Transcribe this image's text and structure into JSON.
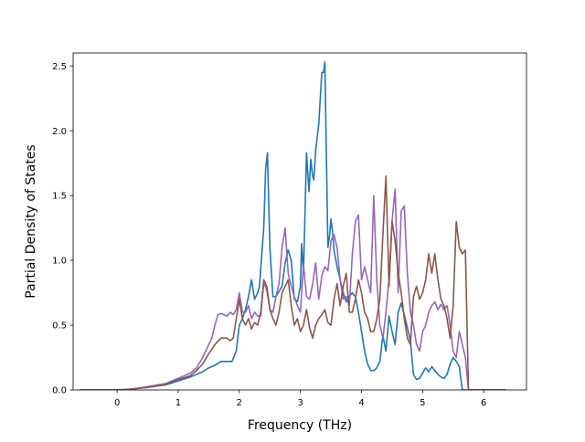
{
  "chart_data": {
    "type": "line",
    "title": "",
    "xlabel": "Frequency (THz)",
    "ylabel": "Partial Density of States",
    "xlim": [
      -0.72,
      6.7
    ],
    "ylim": [
      0.0,
      2.6
    ],
    "xticks": [
      "0",
      "1",
      "2",
      "3",
      "4",
      "5",
      "6"
    ],
    "xtick_values": [
      0,
      1,
      2,
      3,
      4,
      5,
      6
    ],
    "yticks": [
      "0.0",
      "0.5",
      "1.0",
      "1.5",
      "2.0",
      "2.5"
    ],
    "ytick_values": [
      0.0,
      0.5,
      1.0,
      1.5,
      2.0,
      2.5
    ],
    "grid": false,
    "legend": false,
    "series": [
      {
        "color": "#1f77b4",
        "x": [
          -0.6,
          0.0,
          0.2,
          0.5,
          0.8,
          1.0,
          1.2,
          1.4,
          1.5,
          1.6,
          1.7,
          1.8,
          1.88,
          1.95,
          2.0,
          2.05,
          2.1,
          2.15,
          2.2,
          2.25,
          2.3,
          2.33,
          2.36,
          2.4,
          2.43,
          2.46,
          2.5,
          2.55,
          2.6,
          2.7,
          2.75,
          2.8,
          2.85,
          2.9,
          2.95,
          3.0,
          3.02,
          3.05,
          3.1,
          3.14,
          3.17,
          3.2,
          3.22,
          3.25,
          3.3,
          3.35,
          3.38,
          3.4,
          3.45,
          3.48,
          3.5,
          3.53,
          3.55,
          3.6,
          3.65,
          3.7,
          3.75,
          3.8,
          3.85,
          3.9,
          3.95,
          4.0,
          4.05,
          4.1,
          4.15,
          4.2,
          4.25,
          4.3,
          4.35,
          4.4,
          4.45,
          4.5,
          4.55,
          4.6,
          4.65,
          4.7,
          4.75,
          4.8,
          4.85,
          4.9,
          4.95,
          5.0,
          5.05,
          5.1,
          5.15,
          5.2,
          5.25,
          5.3,
          5.35,
          5.4,
          5.45,
          5.5,
          5.55,
          5.6,
          5.65,
          5.7,
          5.75,
          5.8,
          6.35
        ],
        "y": [
          0.0,
          0.0,
          0.005,
          0.02,
          0.04,
          0.07,
          0.1,
          0.14,
          0.17,
          0.19,
          0.22,
          0.22,
          0.22,
          0.3,
          0.5,
          0.55,
          0.62,
          0.72,
          0.85,
          0.7,
          0.75,
          0.8,
          1.0,
          1.25,
          1.7,
          1.83,
          1.1,
          0.72,
          0.72,
          0.8,
          0.98,
          1.08,
          1.0,
          0.7,
          0.68,
          0.8,
          1.13,
          0.9,
          1.83,
          1.53,
          1.78,
          1.65,
          1.62,
          1.85,
          2.05,
          2.45,
          2.45,
          2.53,
          1.1,
          1.2,
          1.32,
          1.2,
          1.08,
          0.95,
          0.85,
          0.75,
          0.68,
          0.72,
          0.75,
          0.72,
          0.6,
          0.45,
          0.3,
          0.2,
          0.15,
          0.15,
          0.17,
          0.22,
          0.42,
          0.3,
          0.57,
          0.45,
          0.35,
          0.6,
          0.67,
          0.58,
          0.48,
          0.38,
          0.12,
          0.08,
          0.09,
          0.13,
          0.17,
          0.14,
          0.18,
          0.15,
          0.12,
          0.1,
          0.09,
          0.12,
          0.2,
          0.25,
          0.22,
          0.18,
          0.0,
          0.0,
          0.0,
          0.0,
          0.0
        ]
      },
      {
        "color": "#9467bd",
        "x": [
          -0.6,
          0.0,
          0.2,
          0.5,
          0.8,
          1.0,
          1.2,
          1.3,
          1.4,
          1.5,
          1.55,
          1.6,
          1.65,
          1.7,
          1.8,
          1.85,
          1.9,
          1.95,
          2.0,
          2.05,
          2.1,
          2.15,
          2.2,
          2.25,
          2.3,
          2.35,
          2.4,
          2.45,
          2.5,
          2.55,
          2.6,
          2.65,
          2.7,
          2.75,
          2.8,
          2.85,
          2.9,
          2.95,
          3.0,
          3.05,
          3.1,
          3.15,
          3.2,
          3.25,
          3.3,
          3.35,
          3.4,
          3.45,
          3.5,
          3.55,
          3.6,
          3.65,
          3.7,
          3.75,
          3.8,
          3.85,
          3.9,
          3.95,
          4.0,
          4.05,
          4.1,
          4.15,
          4.2,
          4.25,
          4.3,
          4.35,
          4.4,
          4.45,
          4.5,
          4.55,
          4.6,
          4.65,
          4.7,
          4.75,
          4.8,
          4.85,
          4.9,
          4.95,
          5.0,
          5.05,
          5.1,
          5.15,
          5.2,
          5.25,
          5.3,
          5.35,
          5.4,
          5.45,
          5.5,
          5.55,
          5.6,
          5.65,
          5.7,
          5.75,
          5.8,
          6.35
        ],
        "y": [
          0.0,
          0.0,
          0.005,
          0.025,
          0.05,
          0.09,
          0.13,
          0.17,
          0.25,
          0.35,
          0.4,
          0.5,
          0.58,
          0.59,
          0.57,
          0.6,
          0.58,
          0.62,
          0.75,
          0.6,
          0.6,
          0.65,
          0.55,
          0.6,
          0.57,
          0.57,
          0.83,
          0.77,
          0.62,
          0.6,
          0.72,
          0.82,
          1.1,
          1.25,
          0.9,
          0.8,
          0.72,
          0.65,
          0.6,
          0.97,
          0.72,
          0.7,
          0.82,
          0.98,
          0.7,
          0.88,
          0.95,
          0.92,
          1.15,
          1.2,
          1.1,
          0.85,
          0.7,
          0.72,
          0.65,
          1.05,
          1.3,
          1.35,
          0.85,
          0.95,
          0.85,
          0.75,
          1.5,
          0.85,
          0.5,
          0.4,
          0.6,
          0.85,
          1.3,
          1.55,
          0.75,
          1.38,
          1.42,
          0.9,
          0.6,
          0.5,
          0.35,
          0.3,
          0.45,
          0.5,
          0.6,
          0.65,
          0.68,
          0.62,
          0.66,
          0.62,
          0.65,
          0.5,
          0.3,
          0.25,
          0.45,
          0.35,
          0.25,
          0.0,
          0.0,
          0.0
        ]
      },
      {
        "color": "#8c564b",
        "x": [
          -0.6,
          0.0,
          0.2,
          0.5,
          0.8,
          1.0,
          1.2,
          1.3,
          1.4,
          1.5,
          1.6,
          1.7,
          1.8,
          1.85,
          1.9,
          1.95,
          2.0,
          2.05,
          2.1,
          2.15,
          2.2,
          2.25,
          2.3,
          2.35,
          2.4,
          2.45,
          2.5,
          2.55,
          2.6,
          2.65,
          2.7,
          2.75,
          2.8,
          2.85,
          2.9,
          2.95,
          3.0,
          3.05,
          3.1,
          3.15,
          3.2,
          3.25,
          3.3,
          3.35,
          3.4,
          3.45,
          3.5,
          3.55,
          3.6,
          3.65,
          3.7,
          3.75,
          3.8,
          3.85,
          3.9,
          3.95,
          4.0,
          4.05,
          4.1,
          4.15,
          4.2,
          4.25,
          4.3,
          4.35,
          4.4,
          4.45,
          4.5,
          4.55,
          4.6,
          4.65,
          4.7,
          4.75,
          4.8,
          4.85,
          4.9,
          4.95,
          5.0,
          5.05,
          5.1,
          5.15,
          5.2,
          5.25,
          5.3,
          5.35,
          5.4,
          5.45,
          5.5,
          5.55,
          5.6,
          5.65,
          5.7,
          5.75,
          5.8,
          6.35
        ],
        "y": [
          0.0,
          0.0,
          0.005,
          0.02,
          0.045,
          0.08,
          0.11,
          0.15,
          0.2,
          0.28,
          0.35,
          0.4,
          0.4,
          0.38,
          0.4,
          0.55,
          0.7,
          0.55,
          0.5,
          0.55,
          0.47,
          0.52,
          0.5,
          0.6,
          0.85,
          0.8,
          0.62,
          0.55,
          0.5,
          0.6,
          0.75,
          0.8,
          0.85,
          0.65,
          0.5,
          0.55,
          0.45,
          0.5,
          0.62,
          0.48,
          0.4,
          0.5,
          0.55,
          0.58,
          0.62,
          0.52,
          0.5,
          0.7,
          0.82,
          0.65,
          0.8,
          0.9,
          0.6,
          0.6,
          0.7,
          0.85,
          0.75,
          0.6,
          0.55,
          0.45,
          0.45,
          0.55,
          0.7,
          1.2,
          1.65,
          0.8,
          1.3,
          1.15,
          0.9,
          0.75,
          0.55,
          0.4,
          0.35,
          0.72,
          0.8,
          0.7,
          0.75,
          0.85,
          1.05,
          0.9,
          1.05,
          0.85,
          0.7,
          0.65,
          0.55,
          0.4,
          0.65,
          1.3,
          1.1,
          1.05,
          1.08,
          0.0,
          0.0,
          0.0
        ]
      }
    ]
  }
}
